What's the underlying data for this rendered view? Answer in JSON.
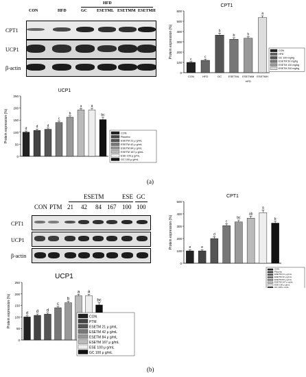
{
  "panel_a": {
    "label": "(a)",
    "blot": {
      "groups": [
        "CON",
        "HFD",
        "GC",
        "ESETML",
        "ESETMM",
        "ESETMH"
      ],
      "supergroup": "HFD",
      "rows": [
        "CPT1",
        "UCP1",
        "β-actin"
      ]
    }
  },
  "panel_b": {
    "label": "(b)",
    "blot": {
      "groups": [
        "CON",
        "PTM",
        "21",
        "42",
        "84",
        "167",
        "100",
        "100"
      ],
      "supergroups": [
        "ESETM",
        "ESE",
        "GC"
      ],
      "rows": [
        "CPT1",
        "UCP1",
        "β-actin"
      ]
    }
  },
  "chart_data": [
    {
      "id": "a-cpt1",
      "type": "bar",
      "title": "CPT1",
      "ylabel": "Protein expression (%)",
      "xlabel": "HFD",
      "ylim": [
        0,
        600
      ],
      "yticks": [
        0,
        100,
        200,
        300,
        400,
        500,
        600
      ],
      "categories": [
        "CON",
        "HFD",
        "GC",
        "ESETML",
        "ESETMM",
        "ESETMH"
      ],
      "values": [
        100,
        120,
        365,
        325,
        335,
        535
      ],
      "errors": [
        8,
        10,
        20,
        15,
        15,
        18
      ],
      "letters": [
        "c",
        "c",
        "b",
        "b",
        "b",
        "a"
      ],
      "colors": [
        "#222222",
        "#666666",
        "#555555",
        "#777777",
        "#999999",
        "#dddddd"
      ],
      "legend": [
        "CON",
        "HFD",
        "GC 100 mg/kg",
        "ESETM 50 mg/kg",
        "ESETM 100 mg/kg",
        "ESETM 200 mg/kg"
      ]
    },
    {
      "id": "a-ucp1",
      "type": "bar",
      "title": "UCP1",
      "ylabel": "Protein expression (%)",
      "ylim": [
        0,
        250
      ],
      "yticks": [
        0,
        50,
        100,
        150,
        200,
        250
      ],
      "categories": [
        "CON",
        "Placebo",
        "ESETM 21",
        "ESETM 42",
        "ESETM 84",
        "ESETM 167",
        "ESE 100",
        "GC 100"
      ],
      "values": [
        100,
        107,
        112,
        140,
        162,
        192,
        192,
        152
      ],
      "errors": [
        5,
        6,
        5,
        6,
        6,
        6,
        7,
        10
      ],
      "letters": [
        "d",
        "d",
        "d",
        "c",
        "b",
        "a",
        "a",
        "bc"
      ],
      "colors": [
        "#222222",
        "#444444",
        "#555555",
        "#777777",
        "#999999",
        "#bbbbbb",
        "#eeeeee",
        "#111111"
      ],
      "legend": [
        "CON",
        "Placebo",
        "ESETM 21 μ g/mL",
        "ESETM 42 μ g/mL",
        "ESETM 84 μ g/mL",
        "ESETM 167 μ g/mL",
        "ESE 100 μ g/mL",
        "GC 100 μ g/mL"
      ]
    },
    {
      "id": "b-cpt1",
      "type": "bar",
      "title": "CPT1",
      "ylabel": "Protein expression (%)",
      "ylim": [
        0,
        500
      ],
      "yticks": [
        0,
        100,
        200,
        300,
        400,
        500
      ],
      "categories": [
        "CON",
        "Placebo",
        "ESETM 21",
        "ESETM 42",
        "ESETM 84",
        "ESETM 167",
        "ESE 100",
        "GC 100"
      ],
      "values": [
        100,
        100,
        200,
        305,
        335,
        365,
        410,
        325
      ],
      "errors": [
        10,
        10,
        15,
        15,
        15,
        15,
        20,
        15
      ],
      "letters": [
        "e",
        "e",
        "d",
        "c",
        "bc",
        "ab",
        "a",
        "b"
      ],
      "colors": [
        "#222222",
        "#444444",
        "#555555",
        "#777777",
        "#999999",
        "#bbbbbb",
        "#eeeeee",
        "#111111"
      ],
      "legend": [
        "CON",
        "Placebo",
        "ESETM 21 μ g/mL",
        "ESETM 42 μ g/mL",
        "ESETM 84 μ g/mL",
        "ESETM 167 μ g/mL",
        "ESE 100 μ g/mL",
        "GC 100 μ g/mL"
      ]
    },
    {
      "id": "b-ucp1",
      "type": "bar",
      "title": "UCP1",
      "ylabel": "Protein expression (%)",
      "ylim": [
        0,
        250
      ],
      "yticks": [
        0,
        50,
        100,
        150,
        200,
        250
      ],
      "categories": [
        "CON",
        "PTM",
        "ESETM 21",
        "ESETM 42",
        "ESETM 84",
        "ESETM 167",
        "ESE 100",
        "GC 100"
      ],
      "values": [
        100,
        107,
        112,
        140,
        162,
        192,
        192,
        152
      ],
      "errors": [
        5,
        6,
        5,
        6,
        6,
        6,
        7,
        10
      ],
      "letters": [
        "d",
        "d",
        "d",
        "c",
        "b",
        "a",
        "a",
        "bc"
      ],
      "colors": [
        "#222222",
        "#444444",
        "#555555",
        "#777777",
        "#999999",
        "#bbbbbb",
        "#eeeeee",
        "#111111"
      ],
      "legend": [
        "CON",
        "PTM",
        "ESETM 21 μ g/mL",
        "ESETM 42 μ g/mL",
        "ESETM 84 μ g/mL",
        "ESETM 167 μ g/mL",
        "ESE 100 μ g/mL",
        "GC 100 μ g/mL"
      ]
    }
  ]
}
